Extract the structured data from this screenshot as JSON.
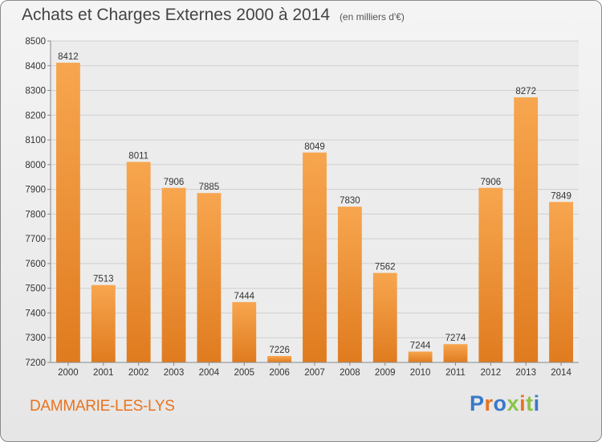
{
  "title": "Achats et Charges Externes 2000 à 2014",
  "subtitle": "(en milliers d'€)",
  "city": "DAMMARIE-LES-LYS",
  "logo": {
    "text": "Proxiti"
  },
  "colors": {
    "bar_top": "#f7a64f",
    "bar_bottom": "#e07b1f",
    "city": "#e8731e",
    "logo": [
      "#3a79c9",
      "#e8731e",
      "#3a79c9",
      "#8bc34a",
      "#e8731e",
      "#8bc34a",
      "#3a79c9"
    ]
  },
  "chart_data": {
    "type": "bar",
    "categories": [
      "2000",
      "2001",
      "2002",
      "2003",
      "2004",
      "2005",
      "2006",
      "2007",
      "2008",
      "2009",
      "2010",
      "2011",
      "2012",
      "2013",
      "2014"
    ],
    "values": [
      8412,
      7513,
      8011,
      7906,
      7885,
      7444,
      7226,
      8049,
      7830,
      7562,
      7244,
      7274,
      7906,
      8272,
      7849
    ],
    "ylim": [
      7200,
      8500
    ],
    "yticks": [
      7200,
      7300,
      7400,
      7500,
      7600,
      7700,
      7800,
      7900,
      8000,
      8100,
      8200,
      8300,
      8400,
      8500
    ],
    "grid": true,
    "xlabel": "",
    "ylabel": ""
  }
}
